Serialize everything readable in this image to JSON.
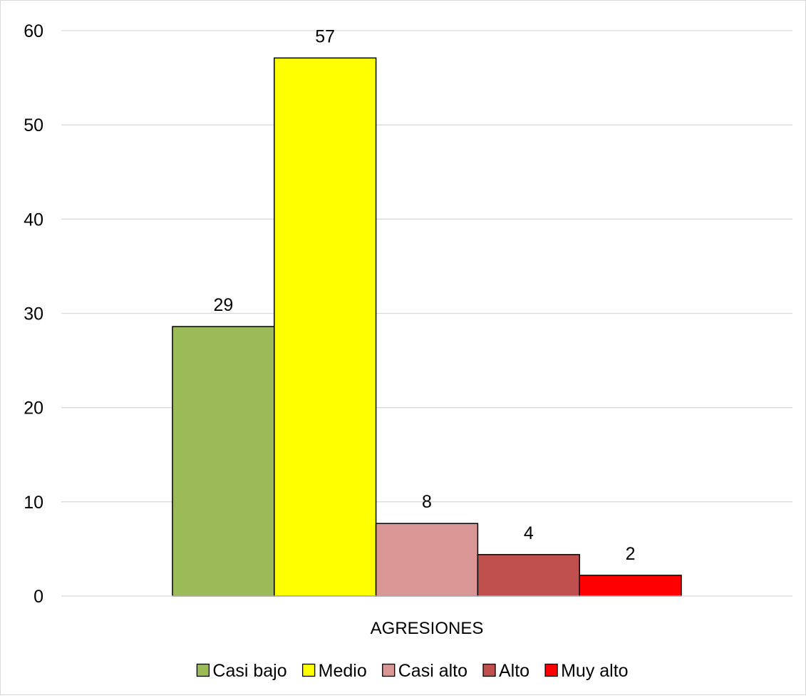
{
  "chart_data": {
    "type": "bar",
    "title": "",
    "xlabel": "",
    "ylabel": "",
    "categories": [
      "AGRESIONES"
    ],
    "series": [
      {
        "name": "Casi bajo",
        "values": [
          28.6
        ],
        "label": "29",
        "color": "#9bbb59"
      },
      {
        "name": "Medio",
        "values": [
          57.1
        ],
        "label": "57",
        "color": "#ffff00"
      },
      {
        "name": "Casi alto",
        "values": [
          7.7
        ],
        "label": "8",
        "color": "#d99694"
      },
      {
        "name": "Alto",
        "values": [
          4.4
        ],
        "label": "4",
        "color": "#c0504d"
      },
      {
        "name": "Muy alto",
        "values": [
          2.2
        ],
        "label": "2",
        "color": "#ff0000"
      }
    ],
    "ylim": [
      0,
      60
    ],
    "yticks": [
      0,
      10,
      20,
      30,
      40,
      50,
      60
    ],
    "grid": true,
    "legend": "bottom",
    "data_labels": true
  }
}
